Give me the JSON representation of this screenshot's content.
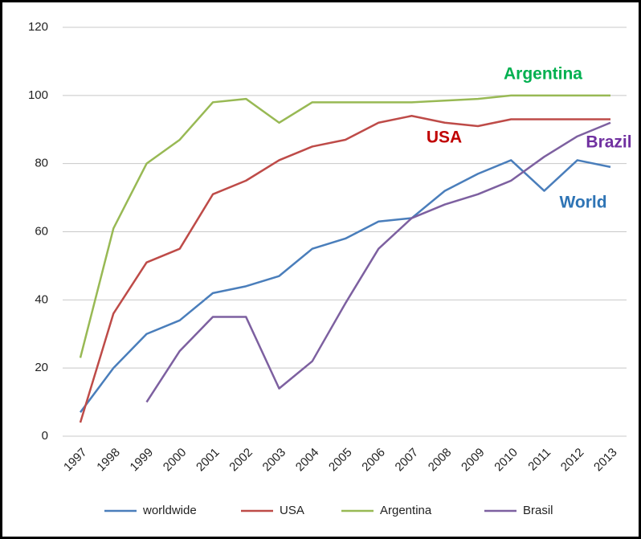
{
  "chart_data": {
    "type": "line",
    "categories": [
      "1997",
      "1998",
      "1999",
      "2000",
      "2001",
      "2002",
      "2003",
      "2004",
      "2005",
      "2006",
      "2007",
      "2008",
      "2009",
      "2010",
      "2011",
      "2012",
      "2013"
    ],
    "series": [
      {
        "name": "worldwide",
        "color": "#4a7ebb",
        "values": [
          7,
          20,
          30,
          34,
          42,
          44,
          47,
          55,
          58,
          63,
          64,
          72,
          77,
          81,
          72,
          81,
          79
        ]
      },
      {
        "name": "USA",
        "color": "#be4b48",
        "values": [
          4,
          36,
          51,
          55,
          71,
          75,
          81,
          85,
          87,
          92,
          94,
          92,
          91,
          93,
          93,
          93,
          93
        ]
      },
      {
        "name": "Argentina",
        "color": "#98b954",
        "values": [
          23,
          61,
          80,
          87,
          98,
          99,
          92,
          98,
          98,
          98,
          98,
          98.5,
          99,
          100,
          100,
          100,
          100
        ]
      },
      {
        "name": "Brasil",
        "color": "#7d60a0",
        "values": [
          null,
          null,
          10,
          25,
          35,
          35,
          14,
          22,
          39,
          55,
          64,
          68,
          71,
          75,
          82,
          88,
          92
        ]
      }
    ],
    "ylim": [
      0,
      120
    ],
    "yticks": [
      0,
      20,
      40,
      60,
      80,
      100,
      120
    ],
    "grid": true,
    "annotations": [
      {
        "text": "Argentina",
        "color": "#00b050"
      },
      {
        "text": "USA",
        "color": "#c00000"
      },
      {
        "text": "Brazil",
        "color": "#7030a0"
      },
      {
        "text": "World",
        "color": "#2e74b5"
      }
    ]
  }
}
